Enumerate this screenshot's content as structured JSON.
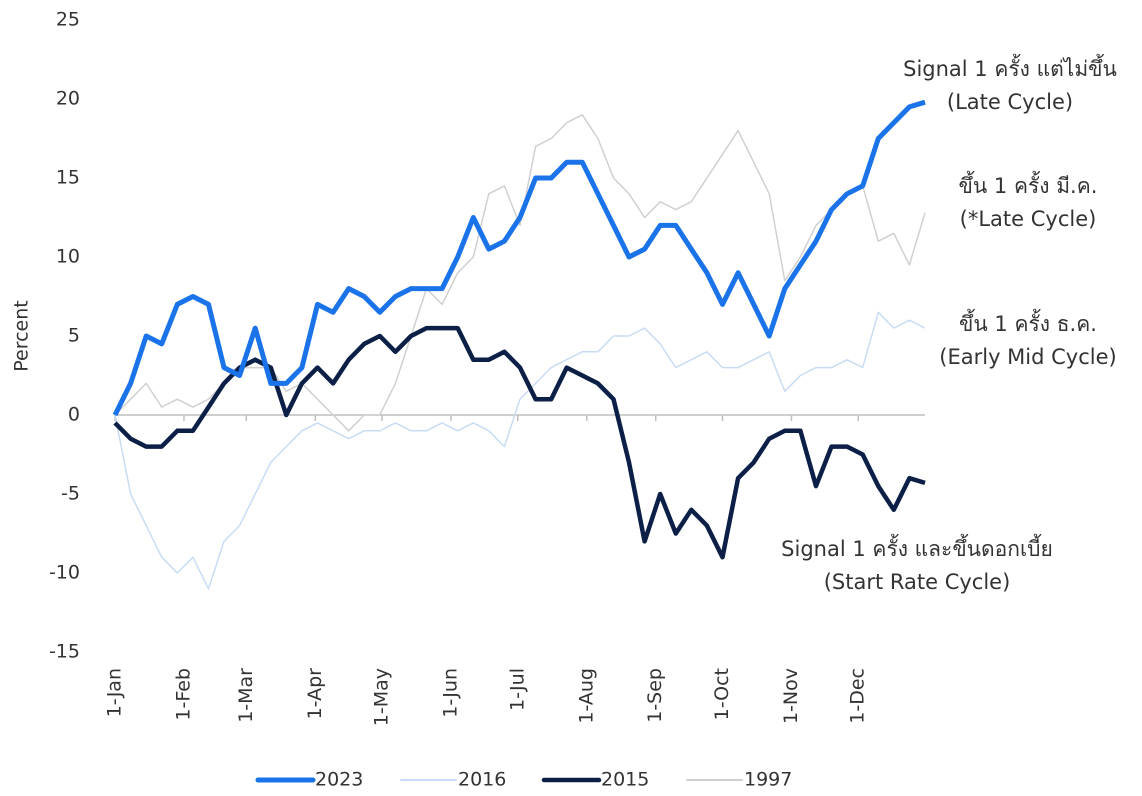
{
  "chart_data": {
    "type": "line",
    "y_label": "Percent",
    "xlim": [
      0,
      364
    ],
    "ylim": [
      -15,
      25
    ],
    "yticks": [
      -15,
      -10,
      -5,
      0,
      5,
      10,
      15,
      20,
      25
    ],
    "xticks": [
      {
        "value": 0,
        "label": "1-Jan"
      },
      {
        "value": 31,
        "label": "1-Feb"
      },
      {
        "value": 59,
        "label": "1-Mar"
      },
      {
        "value": 90,
        "label": "1-Apr"
      },
      {
        "value": 120,
        "label": "1-May"
      },
      {
        "value": 151,
        "label": "1-Jun"
      },
      {
        "value": 181,
        "label": "1-Jul"
      },
      {
        "value": 212,
        "label": "1-Aug"
      },
      {
        "value": 243,
        "label": "1-Sep"
      },
      {
        "value": 273,
        "label": "1-Oct"
      },
      {
        "value": 304,
        "label": "1-Nov"
      },
      {
        "value": 334,
        "label": "1-Dec"
      }
    ],
    "x": [
      0,
      7,
      14,
      21,
      28,
      35,
      42,
      49,
      56,
      63,
      70,
      77,
      84,
      91,
      98,
      105,
      112,
      119,
      126,
      133,
      140,
      147,
      154,
      161,
      168,
      175,
      182,
      189,
      196,
      203,
      210,
      217,
      224,
      231,
      238,
      245,
      252,
      259,
      266,
      273,
      280,
      287,
      294,
      301,
      308,
      315,
      322,
      329,
      336,
      343,
      350,
      357,
      364
    ],
    "series": [
      {
        "name": "2023",
        "color": "#1a73e8",
        "values": [
          0,
          2,
          5,
          4.5,
          7,
          7.5,
          7,
          3,
          2.5,
          5.5,
          2,
          2,
          3,
          7,
          6.5,
          8,
          7.5,
          6.5,
          7.5,
          8,
          8,
          8,
          10,
          12.5,
          10.5,
          11,
          12.5,
          15,
          15,
          16,
          16,
          14,
          12,
          10,
          10.5,
          12,
          12,
          10.5,
          9,
          7,
          9,
          7,
          5,
          8,
          9.5,
          11,
          13,
          14,
          14.5,
          17.5,
          18.5,
          19.5,
          19.8
        ]
      },
      {
        "name": "2016",
        "color": "#c9dcf5",
        "values": [
          0,
          -5,
          -7,
          -9,
          -10,
          -9,
          -11,
          -8,
          -7,
          -5,
          -3,
          -2,
          -1,
          -0.5,
          -1,
          -1.5,
          -1,
          -1,
          -0.5,
          -1,
          -1,
          -0.5,
          -1,
          -0.5,
          -1,
          -2,
          1,
          2,
          3,
          3.5,
          4,
          4,
          5,
          5,
          5.5,
          4.5,
          3,
          3.5,
          4,
          3,
          3,
          3.5,
          4,
          1.5,
          2.5,
          3,
          3,
          3.5,
          3,
          6.5,
          5.5,
          6,
          5.5
        ]
      },
      {
        "name": "2015",
        "color": "#0b1f47",
        "values": [
          -0.5,
          -1.5,
          -2,
          -2,
          -1,
          -1,
          0.5,
          2,
          3,
          3.5,
          3,
          0,
          2,
          3,
          2,
          3.5,
          4.5,
          5,
          4,
          5,
          5.5,
          5.5,
          5.5,
          3.5,
          3.5,
          4,
          3,
          1,
          1,
          3,
          2.5,
          2,
          1,
          -3,
          -8,
          -5,
          -7.5,
          -6,
          -7,
          -9,
          -4,
          -3,
          -1.5,
          -1,
          -1,
          -4.5,
          -2,
          -2,
          -2.5,
          -4.5,
          -6,
          -4,
          -4.3
        ]
      },
      {
        "name": "1997",
        "color": "#d0d0d0",
        "values": [
          0,
          1,
          2,
          0.5,
          1,
          0.5,
          1,
          2,
          3,
          3,
          3,
          1.5,
          2,
          1,
          0,
          -1,
          0,
          0,
          2,
          5,
          8,
          7,
          9,
          10,
          14,
          14.5,
          12,
          17,
          17.5,
          18.5,
          19,
          17.5,
          15,
          14,
          12.5,
          13.5,
          13,
          13.5,
          15,
          16.5,
          18,
          16,
          14,
          8.5,
          10,
          12,
          13,
          14,
          14.5,
          11,
          11.5,
          9.5,
          12.8
        ]
      }
    ],
    "annotations": [
      {
        "lines": [
          "Signal 1 ครั้ง แต่ไม่ขึ้น",
          "(Late Cycle)"
        ],
        "color": "#1a73e8"
      },
      {
        "lines": [
          "ขึ้น 1 ครั้ง มี.ค.",
          "(*Late Cycle)"
        ],
        "color": "#8c8c8c"
      },
      {
        "lines": [
          "ขึ้น 1 ครั้ง ธ.ค.",
          "(Early Mid Cycle)"
        ],
        "color": "#9cc0ee"
      },
      {
        "lines": [
          "Signal 1 ครั้ง และขึ้นดอกเบี้ย",
          "(Start Rate Cycle)"
        ],
        "color": "#0b1f47"
      }
    ]
  }
}
